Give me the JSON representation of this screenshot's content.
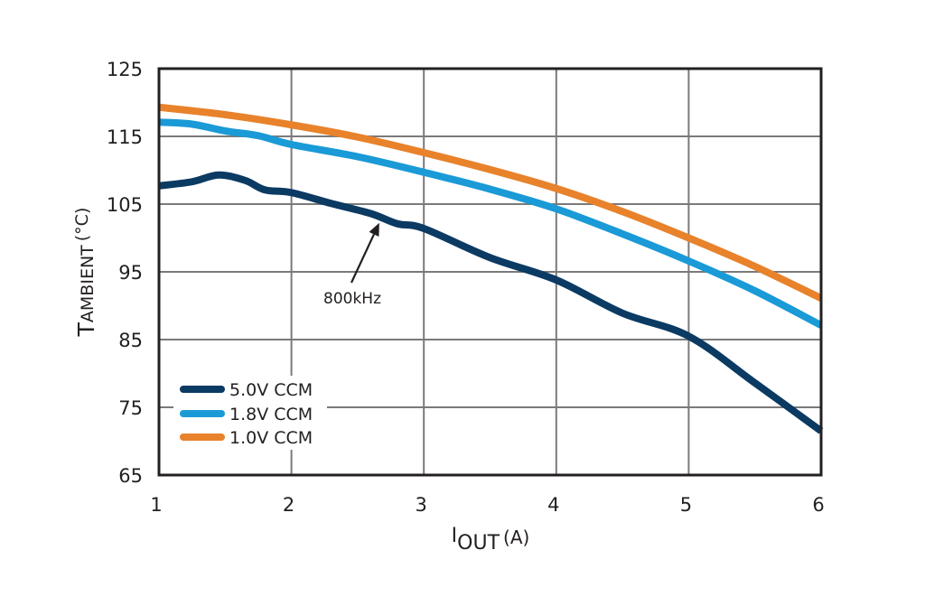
{
  "chart_data": {
    "type": "line",
    "title": "",
    "xlabel": {
      "main": "I",
      "sub": "OUT",
      "unit": "(A)"
    },
    "ylabel": {
      "main": "T",
      "sub": "AMBIENT",
      "unit": "(°C)"
    },
    "xlim": [
      1,
      6
    ],
    "ylim": [
      65,
      125
    ],
    "xticks": [
      1,
      2,
      3,
      4,
      5,
      6
    ],
    "xtick_labels": [
      "1",
      "2",
      "3",
      "4",
      "5",
      "6"
    ],
    "yticks": [
      65,
      75,
      85,
      95,
      105,
      115,
      125
    ],
    "ytick_labels": [
      "65",
      "75",
      "85",
      "95",
      "105",
      "115",
      "125"
    ],
    "grid": true,
    "legend_position": "bottom-left",
    "series": [
      {
        "name": "5.0V CCM",
        "color": "#0b3a63",
        "x": [
          1.0,
          1.25,
          1.45,
          1.65,
          1.8,
          2.0,
          2.3,
          2.6,
          2.8,
          3.0,
          3.5,
          4.0,
          4.5,
          5.0,
          5.5,
          6.0
        ],
        "y": [
          107.7,
          108.3,
          109.3,
          108.5,
          107.1,
          106.7,
          105.1,
          103.6,
          102.1,
          101.4,
          97.1,
          93.8,
          88.9,
          85.5,
          78.6,
          71.5
        ]
      },
      {
        "name": "1.8V CCM",
        "color": "#1a9ad6",
        "x": [
          1.0,
          1.25,
          1.5,
          1.75,
          2.0,
          2.5,
          3.0,
          3.5,
          4.0,
          4.5,
          5.0,
          5.5,
          6.0
        ],
        "y": [
          117.1,
          116.8,
          115.8,
          115.1,
          113.8,
          112.0,
          109.7,
          107.2,
          104.3,
          100.6,
          96.6,
          92.2,
          87.1
        ]
      },
      {
        "name": "1.0V CCM",
        "color": "#e8822b",
        "x": [
          1.0,
          1.5,
          2.0,
          2.5,
          3.0,
          3.5,
          4.0,
          4.5,
          5.0,
          5.5,
          6.0
        ],
        "y": [
          119.3,
          118.2,
          116.7,
          114.9,
          112.6,
          110.1,
          107.3,
          103.9,
          100.0,
          95.8,
          91.1
        ]
      }
    ],
    "annotations": [
      {
        "text": "800kHz",
        "points_to": {
          "x": 2.65,
          "y": 103.3
        }
      }
    ]
  }
}
